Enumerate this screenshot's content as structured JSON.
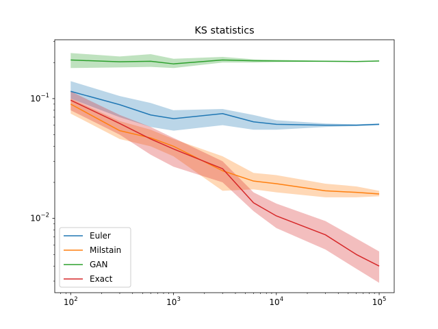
{
  "chart_data": {
    "type": "line",
    "title": "KS statistics",
    "xlabel": "",
    "ylabel": "",
    "xscale": "log",
    "yscale": "log",
    "xlim": [
      70,
      140000
    ],
    "ylim": [
      0.0024,
      0.31
    ],
    "grid": false,
    "legend_position": "lower-left",
    "x_ticks": [
      {
        "value": 100,
        "base": "10",
        "exp": "2"
      },
      {
        "value": 1000,
        "base": "10",
        "exp": "3"
      },
      {
        "value": 10000,
        "base": "10",
        "exp": "4"
      },
      {
        "value": 100000,
        "base": "10",
        "exp": "5"
      }
    ],
    "y_ticks": [
      {
        "value": 0.01,
        "base": "10",
        "exp": "−2"
      },
      {
        "value": 0.1,
        "base": "10",
        "exp": "−1"
      }
    ],
    "series": [
      {
        "name": "Euler",
        "color": "#1f77b4",
        "x": [
          100,
          300,
          600,
          1000,
          3000,
          6000,
          10000,
          30000,
          60000,
          100000
        ],
        "y": [
          0.115,
          0.089,
          0.073,
          0.068,
          0.075,
          0.064,
          0.061,
          0.06,
          0.06,
          0.061
        ],
        "lower": [
          0.1,
          0.07,
          0.058,
          0.054,
          0.06,
          0.055,
          0.055,
          0.058,
          0.059,
          0.06
        ],
        "upper": [
          0.14,
          0.105,
          0.092,
          0.08,
          0.082,
          0.073,
          0.066,
          0.062,
          0.061,
          0.062
        ]
      },
      {
        "name": "Milstain",
        "color": "#ff7f0e",
        "x": [
          100,
          300,
          600,
          1000,
          3000,
          6000,
          10000,
          30000,
          60000,
          100000
        ],
        "y": [
          0.09,
          0.054,
          0.047,
          0.04,
          0.025,
          0.0205,
          0.0195,
          0.017,
          0.0165,
          0.016
        ],
        "lower": [
          0.075,
          0.046,
          0.04,
          0.033,
          0.017,
          0.0175,
          0.0165,
          0.015,
          0.015,
          0.0153
        ],
        "upper": [
          0.1,
          0.065,
          0.055,
          0.046,
          0.033,
          0.024,
          0.023,
          0.0195,
          0.0185,
          0.017
        ]
      },
      {
        "name": "GAN",
        "color": "#2ca02c",
        "x": [
          100,
          300,
          600,
          1000,
          3000,
          6000,
          10000,
          30000,
          60000,
          100000
        ],
        "y": [
          0.21,
          0.203,
          0.205,
          0.195,
          0.21,
          0.207,
          0.206,
          0.205,
          0.204,
          0.206
        ],
        "lower": [
          0.18,
          0.182,
          0.184,
          0.18,
          0.2,
          0.2,
          0.202,
          0.203,
          0.203,
          0.205
        ],
        "upper": [
          0.24,
          0.225,
          0.235,
          0.215,
          0.223,
          0.213,
          0.211,
          0.207,
          0.206,
          0.208
        ]
      },
      {
        "name": "Exact",
        "color": "#d62728",
        "x": [
          100,
          300,
          600,
          1000,
          3000,
          6000,
          10000,
          30000,
          60000,
          100000
        ],
        "y": [
          0.097,
          0.062,
          0.046,
          0.038,
          0.026,
          0.0135,
          0.0105,
          0.0073,
          0.005,
          0.004
        ],
        "lower": [
          0.08,
          0.05,
          0.034,
          0.027,
          0.02,
          0.0115,
          0.0083,
          0.0055,
          0.0038,
          0.0029
        ],
        "upper": [
          0.115,
          0.073,
          0.058,
          0.047,
          0.03,
          0.0165,
          0.0133,
          0.0095,
          0.0068,
          0.0053
        ]
      }
    ]
  }
}
